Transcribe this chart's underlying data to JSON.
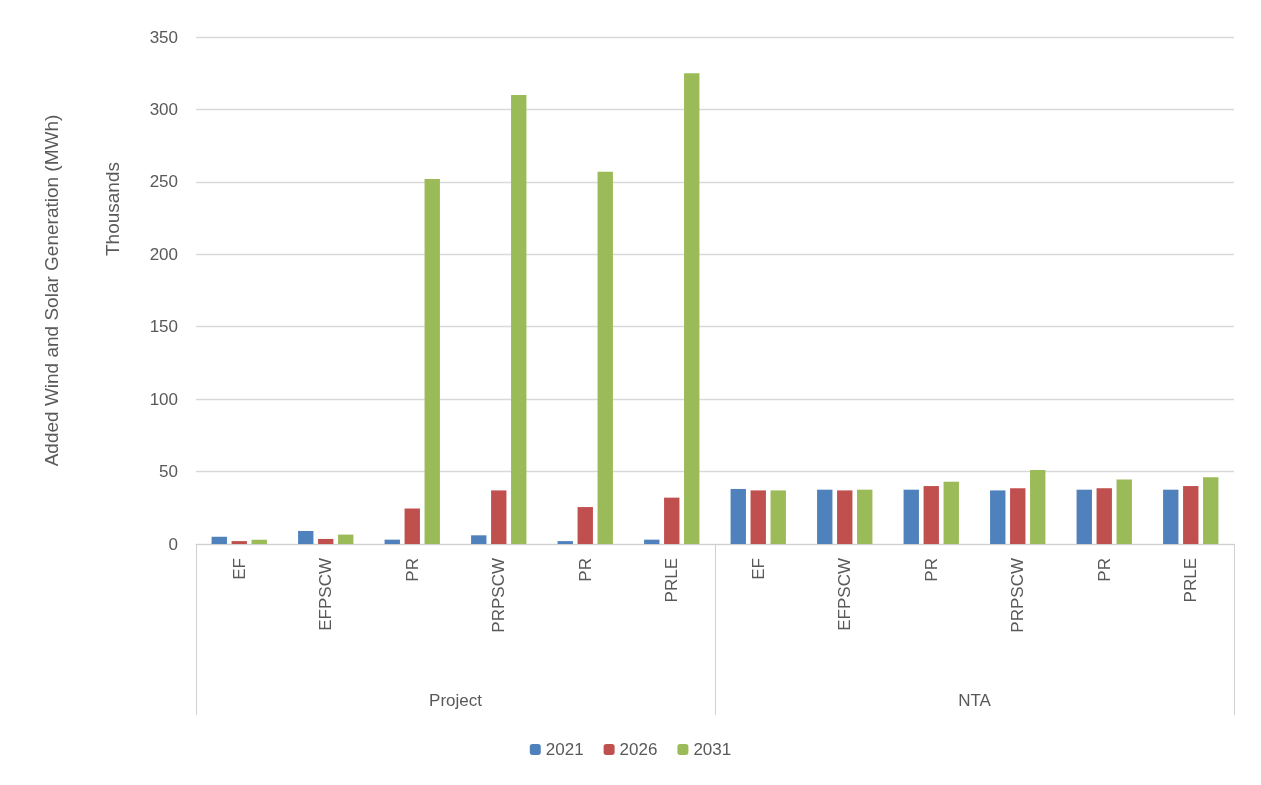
{
  "chart_data": {
    "type": "bar",
    "ylabel": "Added Wind and Solar Generation (MWh)",
    "annotations": [
      "Thousands",
      "Project",
      "NTA"
    ],
    "categories": [
      "EF",
      "EFPSCW",
      "PR",
      "PRPSCW",
      "PR",
      "PRLE",
      "EF",
      "EFPSCW",
      "PR",
      "PRPSCW",
      "PR",
      "PRLE"
    ],
    "series": [
      {
        "name": "2021",
        "color": "#4f81bd",
        "values": [
          5,
          9,
          3,
          6,
          2,
          3,
          38,
          37.5,
          37.5,
          37,
          37.5,
          37.5
        ]
      },
      {
        "name": "2026",
        "color": "#c0504d",
        "values": [
          2,
          3.5,
          24.5,
          37,
          25.5,
          32,
          37,
          37,
          40,
          38.5,
          38.5,
          40
        ]
      },
      {
        "name": "2031",
        "color": "#9bbb59",
        "values": [
          3,
          6.5,
          252,
          310,
          257,
          325,
          37,
          37.5,
          43,
          51,
          44.5,
          46
        ]
      }
    ],
    "ylim": [
      0,
      350
    ],
    "yticks": [
      0,
      50,
      100,
      150,
      200,
      250,
      300,
      350
    ],
    "grid": "y",
    "legend": "bottom"
  }
}
